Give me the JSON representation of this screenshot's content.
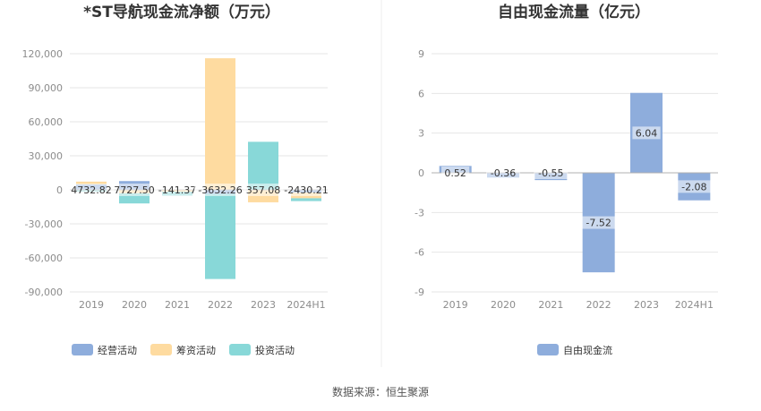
{
  "source": "数据来源：恒生聚源",
  "chart_data": [
    {
      "type": "bar",
      "title": "*ST导航现金流净额（万元）",
      "categories": [
        "2019",
        "2020",
        "2021",
        "2022",
        "2023",
        "2024H1"
      ],
      "ylim": [
        -90000,
        120000
      ],
      "yticks": [
        120000,
        90000,
        60000,
        30000,
        0,
        -30000,
        -60000,
        -90000
      ],
      "ytick_labels": [
        "120,000",
        "90,000",
        "60,000",
        "30,000",
        "0",
        "-30,000",
        "-60,000",
        "-90,000"
      ],
      "stacked": true,
      "grid": true,
      "legend_position": "bottom",
      "series": [
        {
          "name": "经营活动",
          "color": "#8eaddc",
          "values": [
            4732.82,
            7727.5,
            -141.37,
            -3632.26,
            357.08,
            -2430.21
          ]
        },
        {
          "name": "筹资活动",
          "color": "#fedba0",
          "values": [
            2500,
            -3000,
            -1500,
            116000,
            -11000,
            -5000
          ]
        },
        {
          "name": "投资活动",
          "color": "#88d8d8",
          "values": [
            -1500,
            -9000,
            -3500,
            -75000,
            42000,
            -2500
          ]
        }
      ],
      "data_labels": [
        "4732.82",
        "7727.50",
        "-141.37",
        "-3632.26",
        "357.08",
        "-2430.21"
      ]
    },
    {
      "type": "bar",
      "title": "自由现金流量（亿元）",
      "categories": [
        "2019",
        "2020",
        "2021",
        "2022",
        "2023",
        "2024H1"
      ],
      "ylim": [
        -9,
        9
      ],
      "yticks": [
        9,
        6,
        3,
        0,
        -3,
        -6,
        -9
      ],
      "ytick_labels": [
        "9",
        "6",
        "3",
        "0",
        "-3",
        "-6",
        "-9"
      ],
      "grid": true,
      "legend_position": "bottom",
      "series": [
        {
          "name": "自由现金流",
          "color": "#8eaddc",
          "values": [
            0.52,
            -0.36,
            -0.55,
            -7.52,
            6.04,
            -2.08
          ]
        }
      ],
      "data_labels": [
        "0.52",
        "-0.36",
        "-0.55",
        "-7.52",
        "6.04",
        "-2.08"
      ]
    }
  ]
}
